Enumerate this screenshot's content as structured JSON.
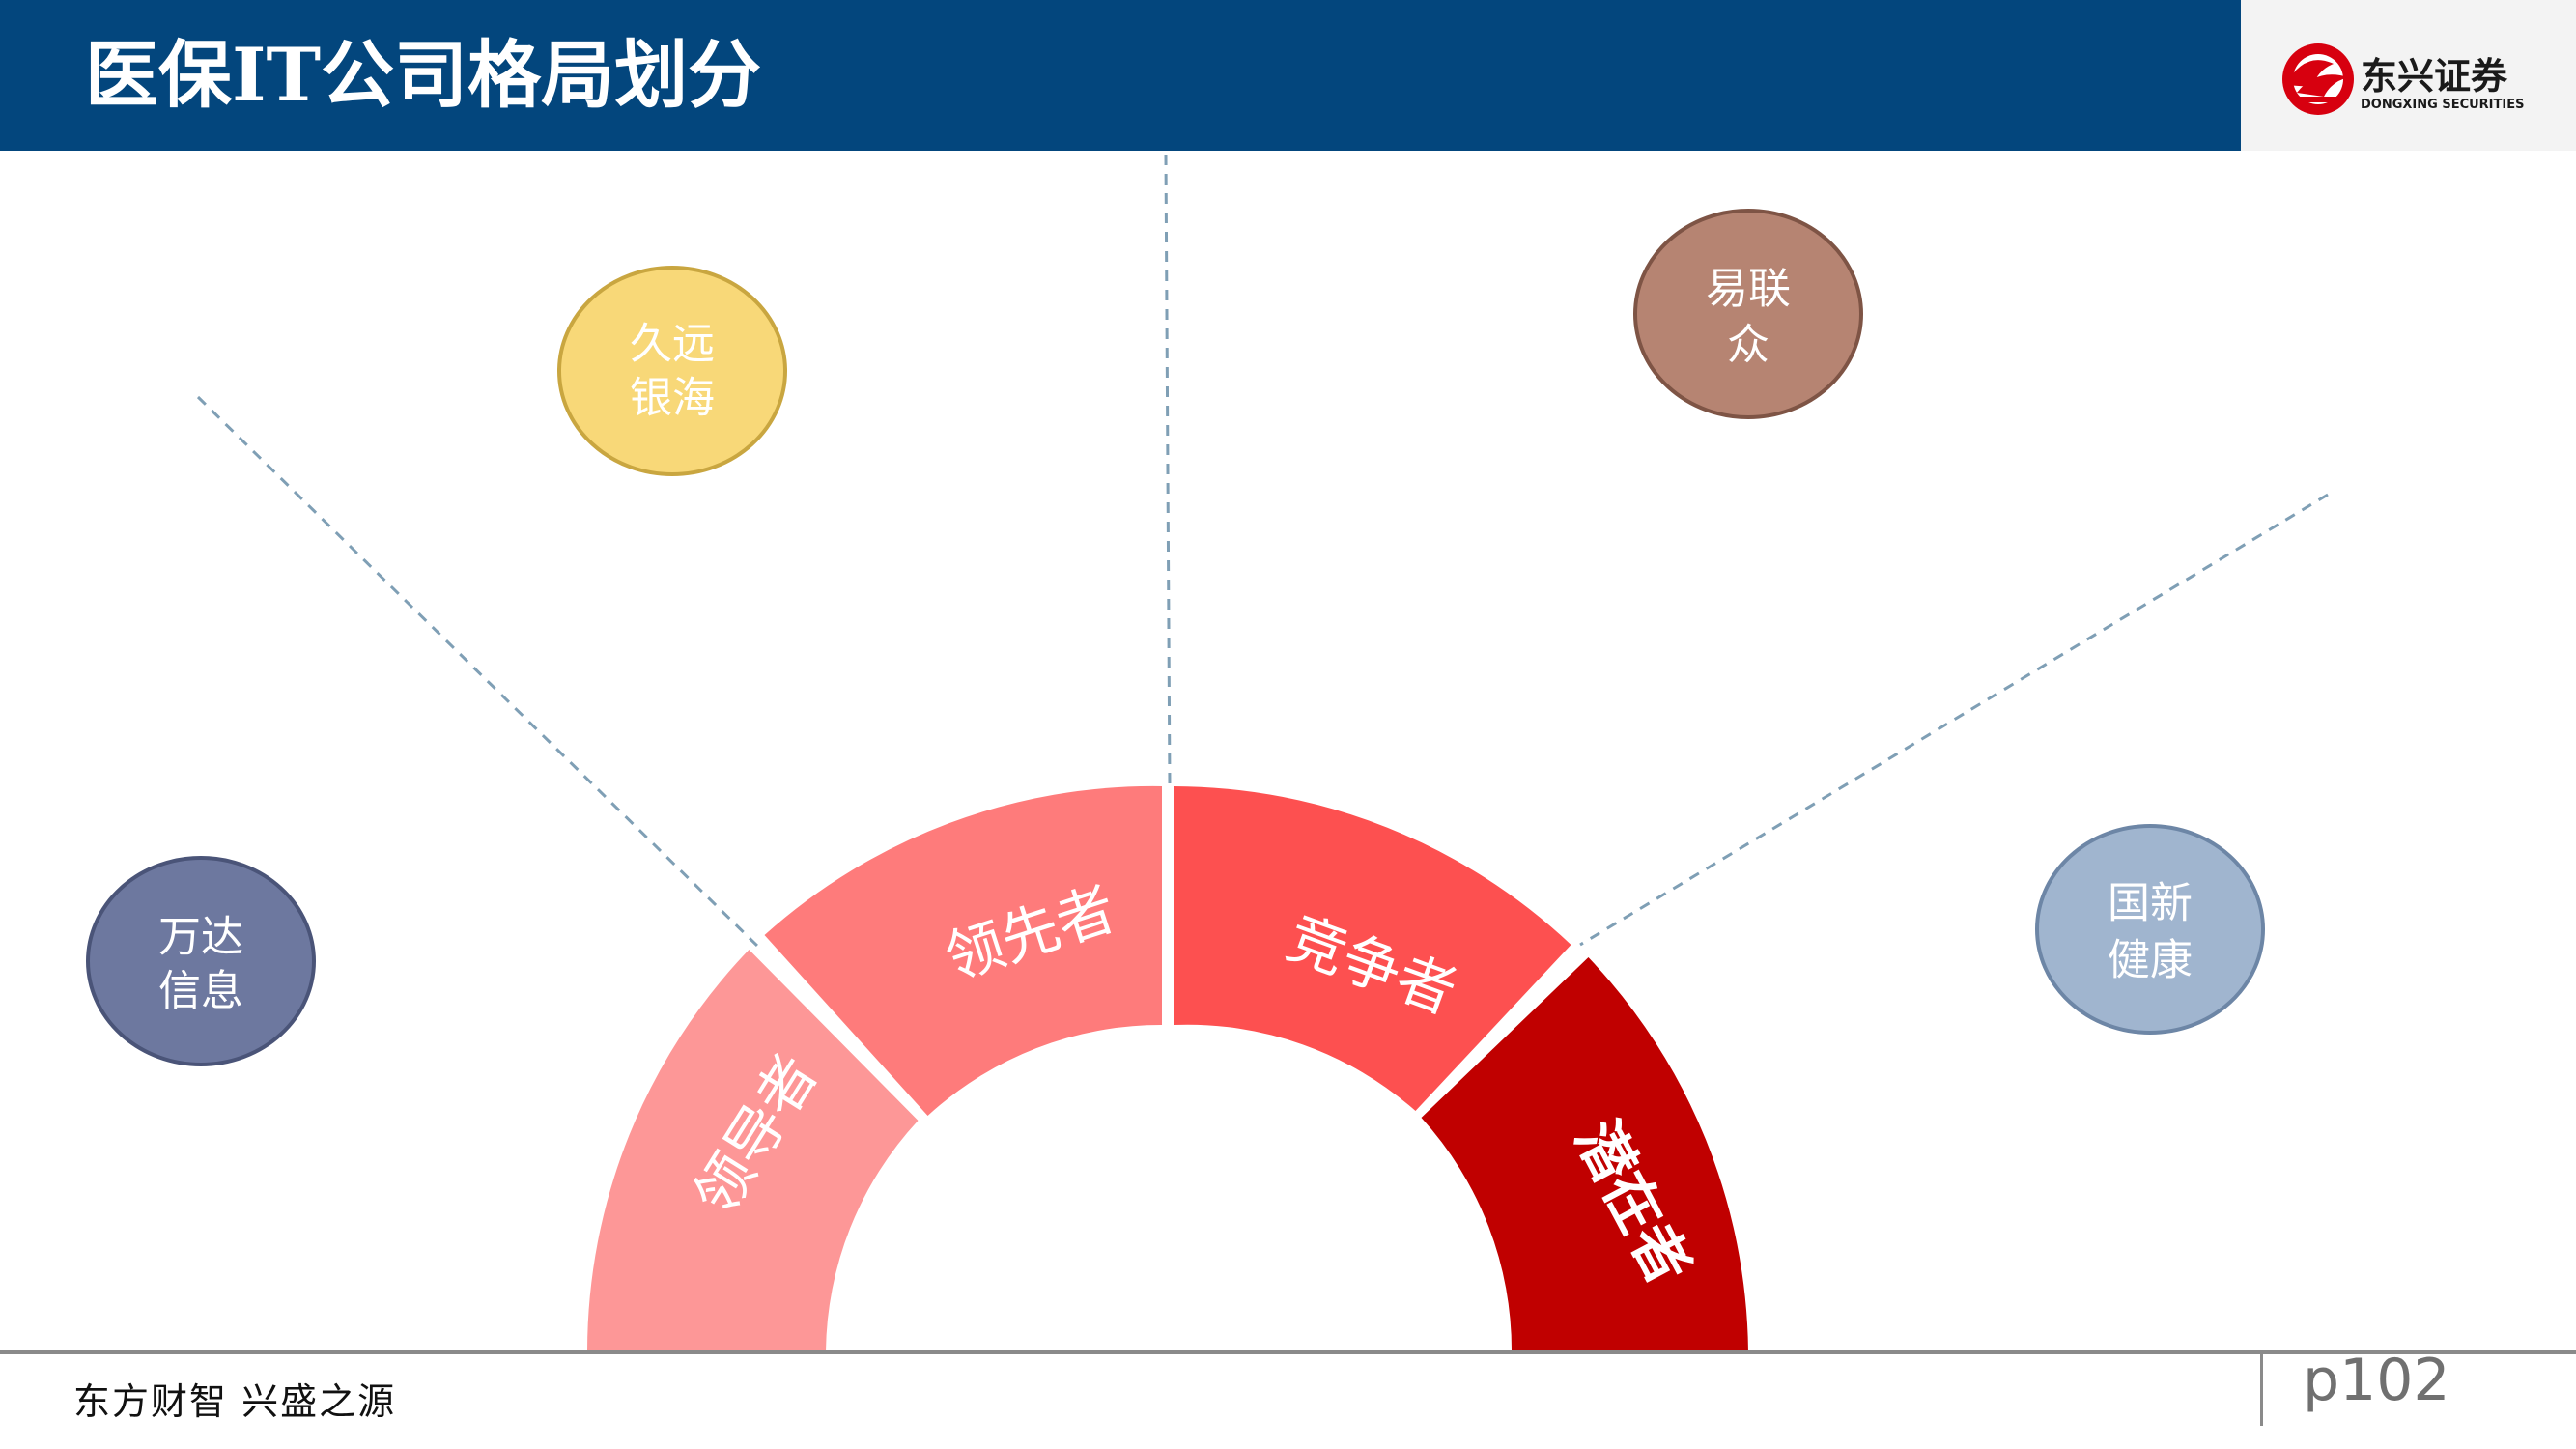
{
  "header": {
    "title": "医保IT公司格局划分",
    "logo": {
      "name_cn": "东兴证券",
      "name_en": "DONGXING SECURITIES"
    }
  },
  "diagram": {
    "segments": [
      {
        "label": "领导者",
        "color": "#fd9797"
      },
      {
        "label": "领先者",
        "color": "#fe7b7b"
      },
      {
        "label": "竞争者",
        "color": "#fd5050"
      },
      {
        "label": "潜在者",
        "color": "#c00000"
      }
    ],
    "companies": [
      {
        "line1": "万达",
        "line2": "信息",
        "fill": "#6d789f",
        "stroke": "#4a5478"
      },
      {
        "line1": "久远",
        "line2": "银海",
        "fill": "#f8d878",
        "stroke": "#c9a640"
      },
      {
        "line1": "易联",
        "line2": "众",
        "fill": "#b68472",
        "stroke": "#7e5445"
      },
      {
        "line1": "国新",
        "line2": "健康",
        "fill": "#a0b5cf",
        "stroke": "#6d86a6"
      }
    ]
  },
  "footer": {
    "slogan": "东方财智 兴盛之源",
    "page": "p102"
  }
}
